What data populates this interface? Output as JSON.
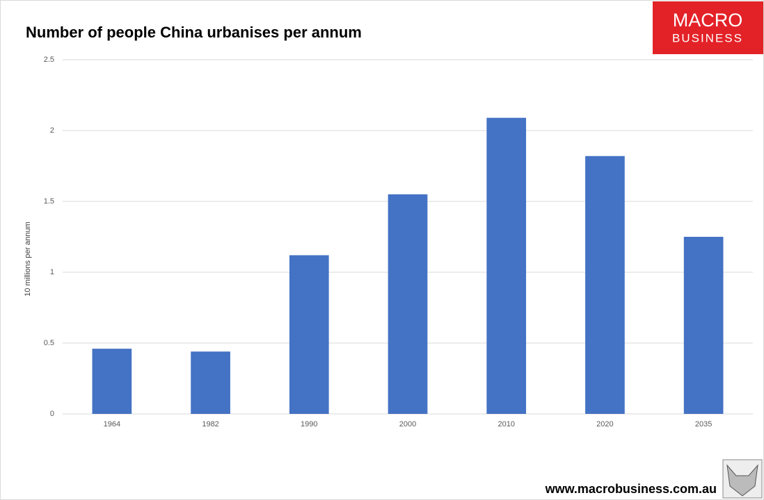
{
  "chart_data": {
    "type": "bar",
    "title": "Number of people China urbanises per annum",
    "y_label": "10 millions per annum",
    "categories": [
      "1964",
      "1982",
      "1990",
      "2000",
      "2010",
      "2020",
      "2035"
    ],
    "values": [
      0.46,
      0.44,
      1.12,
      1.55,
      2.09,
      1.82,
      1.25
    ],
    "color": "#4472c4",
    "ylim": [
      0,
      2.5
    ],
    "yticks": [
      0,
      0.5,
      1,
      1.5,
      2,
      2.5
    ],
    "grid": true,
    "logo": [
      "MACRO",
      "BUSINESS"
    ],
    "footer": "www.macrobusiness.com.au"
  }
}
